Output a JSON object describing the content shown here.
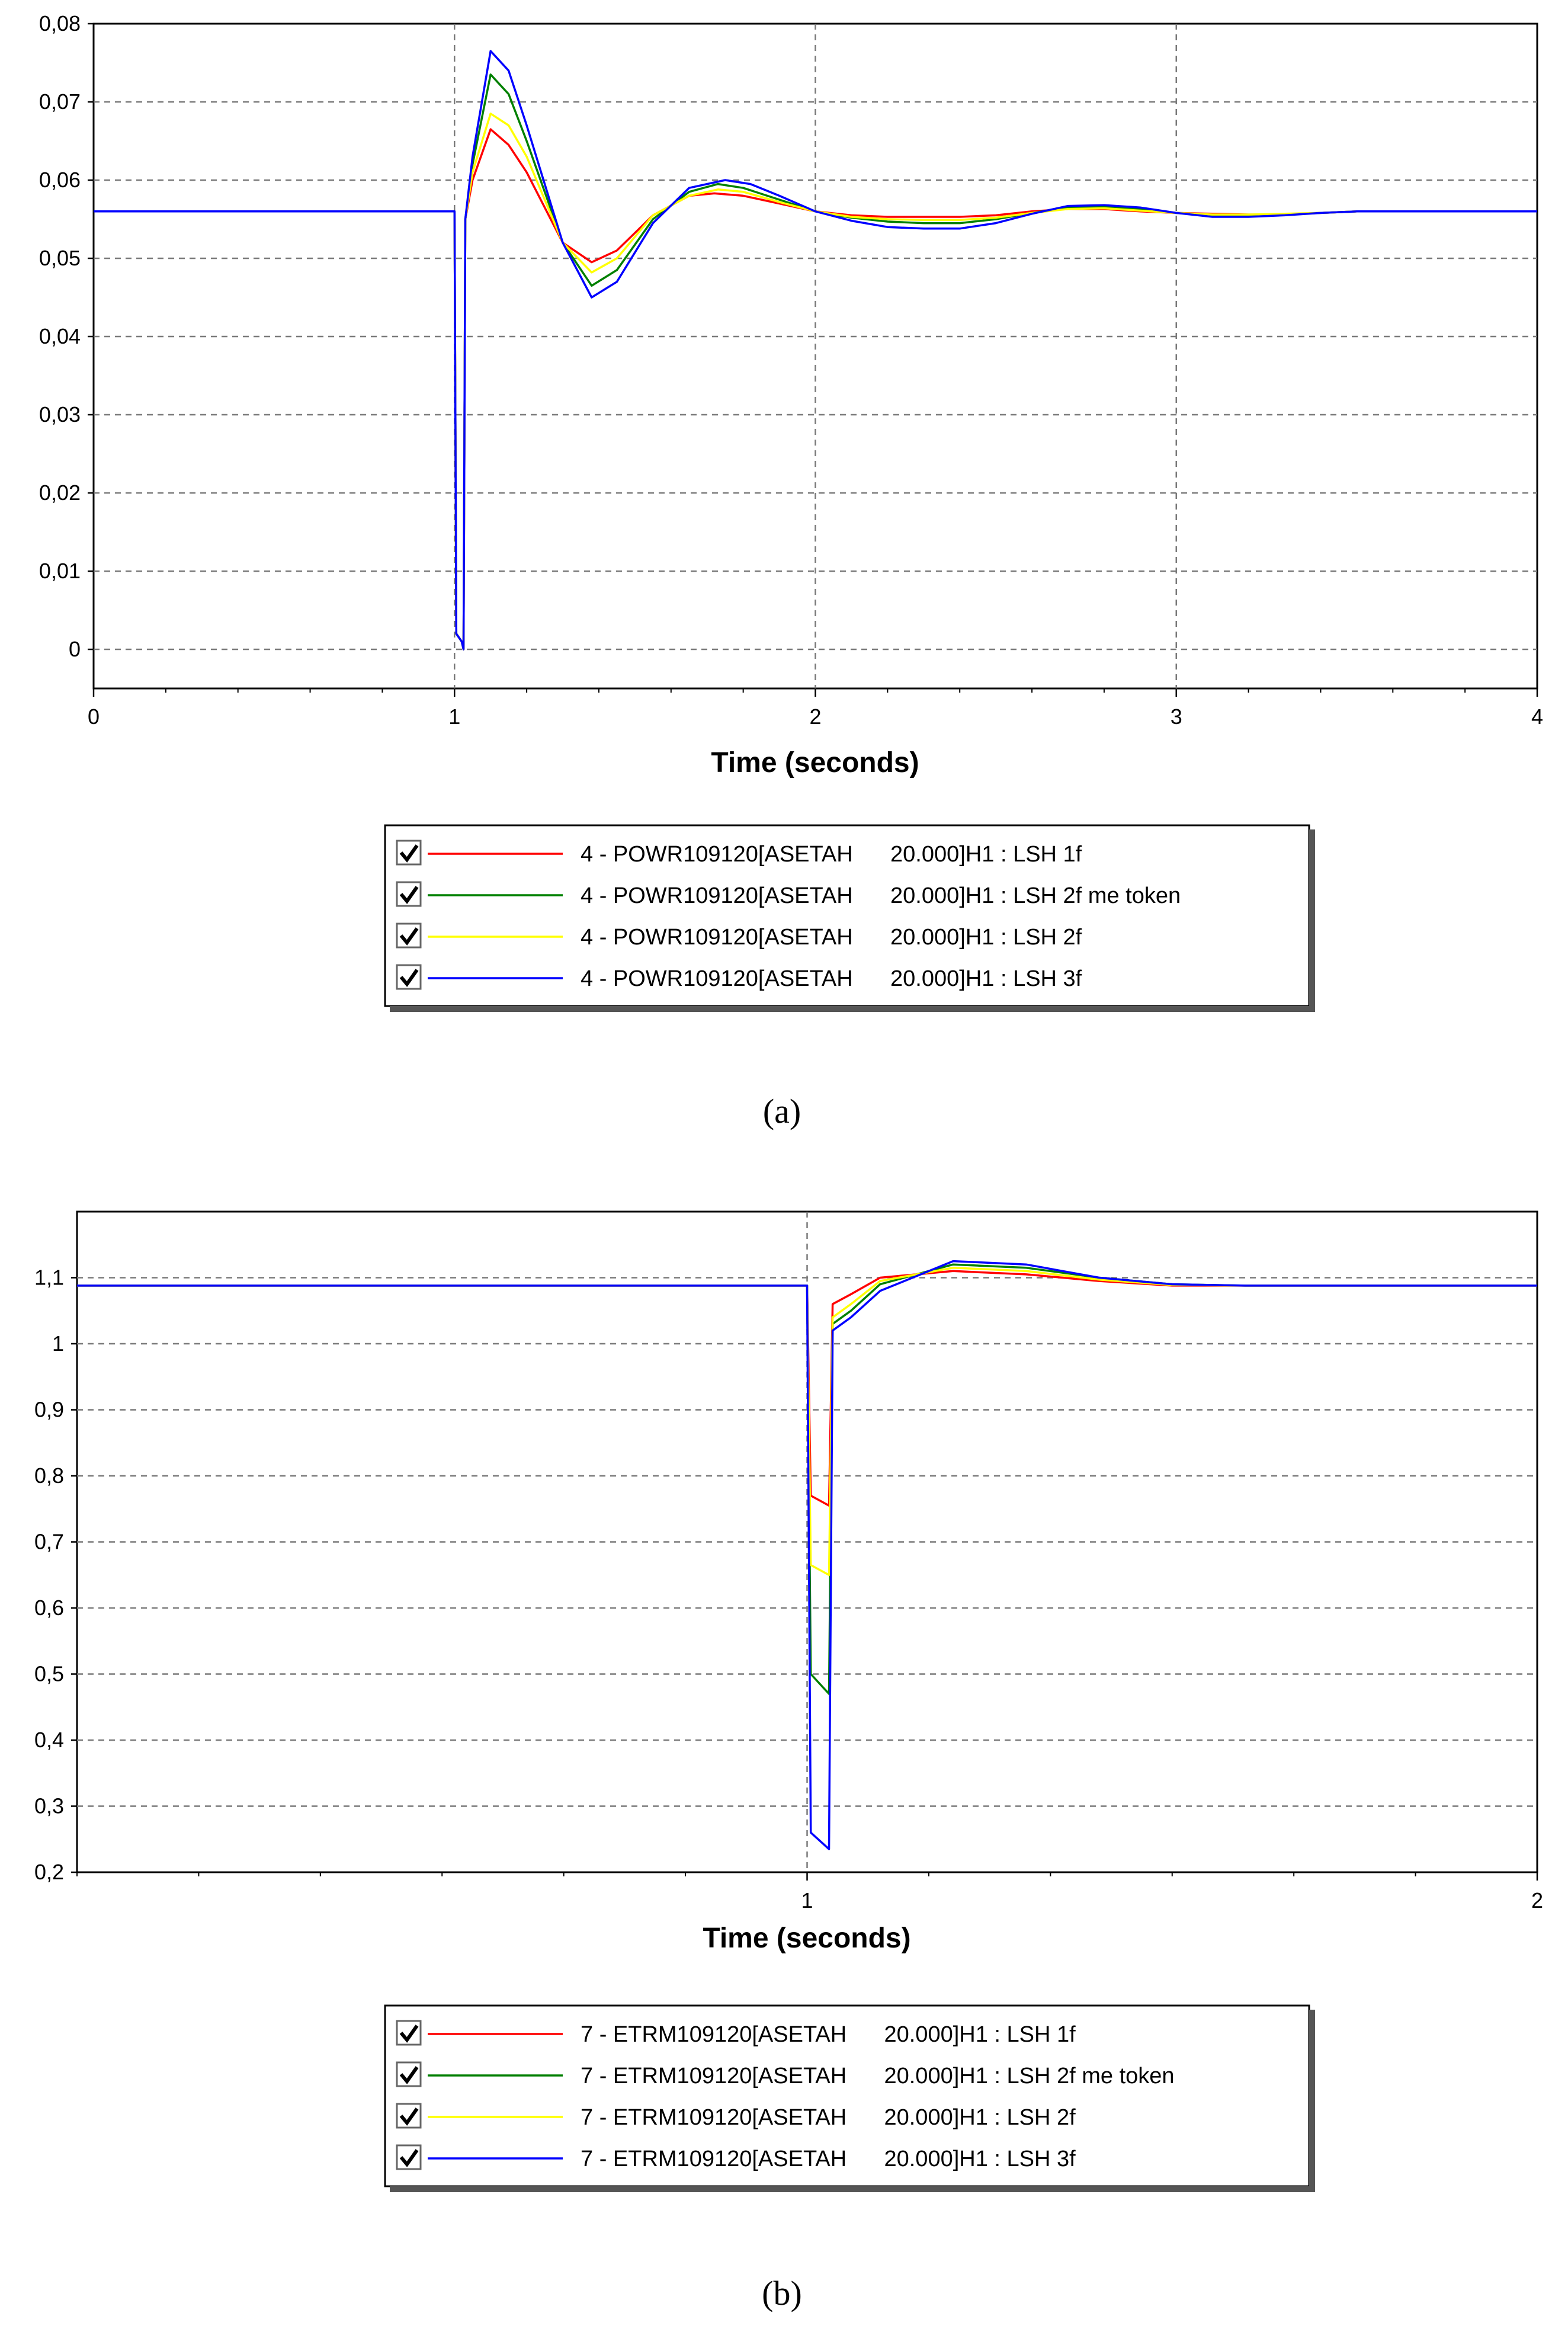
{
  "chart_data": [
    {
      "type": "line",
      "caption": "(a)",
      "xlabel": "Time (seconds)",
      "ylabel": "",
      "xlim": [
        0,
        4
      ],
      "ylim": [
        -0.005,
        0.08
      ],
      "xticks": [
        "0",
        "1",
        "2",
        "3",
        "4"
      ],
      "yticks": [
        "0",
        "0,01",
        "0,02",
        "0,03",
        "0,04",
        "0,05",
        "0,06",
        "0,07",
        "0,08"
      ],
      "ytick_values": [
        0,
        0.01,
        0.02,
        0.03,
        0.04,
        0.05,
        0.06,
        0.07,
        0.08
      ],
      "xtick_values": [
        0,
        1,
        2,
        3,
        4
      ],
      "grid": true,
      "legend_position": "bottom-center",
      "series": [
        {
          "name": "4 - POWR109120[ASETAH      20.000]H1 : LSH 1f",
          "color": "#ff0000",
          "x": [
            0,
            1.0,
            1.005,
            1.02,
            1.025,
            1.03,
            1.05,
            1.1,
            1.15,
            1.2,
            1.3,
            1.38,
            1.45,
            1.55,
            1.65,
            1.72,
            1.8,
            1.9,
            2.0,
            2.1,
            2.2,
            2.3,
            2.4,
            2.5,
            2.6,
            2.7,
            2.8,
            2.9,
            3.0,
            3.1,
            3.2,
            3.3,
            3.4,
            3.5,
            4.0
          ],
          "y": [
            0.056,
            0.056,
            0.002,
            0.001,
            0.0,
            0.055,
            0.06,
            0.0665,
            0.0645,
            0.061,
            0.052,
            0.0495,
            0.051,
            0.0555,
            0.058,
            0.0583,
            0.058,
            0.057,
            0.056,
            0.0555,
            0.0553,
            0.0553,
            0.0553,
            0.0555,
            0.056,
            0.0563,
            0.0563,
            0.056,
            0.0558,
            0.0557,
            0.0556,
            0.0556,
            0.0558,
            0.056,
            0.056
          ]
        },
        {
          "name": "4 - POWR109120[ASETAH      20.000]H1 : LSH 2f me token",
          "color": "#008000",
          "x": [
            0,
            1.0,
            1.005,
            1.02,
            1.025,
            1.03,
            1.05,
            1.1,
            1.15,
            1.2,
            1.3,
            1.38,
            1.45,
            1.55,
            1.65,
            1.73,
            1.8,
            1.9,
            2.0,
            2.1,
            2.2,
            2.3,
            2.4,
            2.5,
            2.6,
            2.7,
            2.8,
            2.9,
            3.0,
            3.1,
            3.2,
            3.3,
            3.4,
            3.5,
            4.0
          ],
          "y": [
            0.056,
            0.056,
            0.002,
            0.001,
            0.0,
            0.055,
            0.062,
            0.0735,
            0.071,
            0.065,
            0.052,
            0.0465,
            0.0485,
            0.055,
            0.0585,
            0.0595,
            0.059,
            0.0575,
            0.056,
            0.0552,
            0.0547,
            0.0545,
            0.0545,
            0.055,
            0.0558,
            0.0565,
            0.0566,
            0.0563,
            0.0558,
            0.0555,
            0.0555,
            0.0556,
            0.0558,
            0.056,
            0.056
          ]
        },
        {
          "name": "4 - POWR109120[ASETAH      20.000]H1 : LSH 2f",
          "color": "#ffff00",
          "x": [
            0,
            1.0,
            1.005,
            1.02,
            1.025,
            1.03,
            1.05,
            1.1,
            1.15,
            1.2,
            1.3,
            1.38,
            1.45,
            1.55,
            1.65,
            1.73,
            1.8,
            1.9,
            2.0,
            2.1,
            2.2,
            2.3,
            2.4,
            2.5,
            2.6,
            2.7,
            2.8,
            2.9,
            3.0,
            3.1,
            3.2,
            3.3,
            3.4,
            3.5,
            4.0
          ],
          "y": [
            0.056,
            0.056,
            0.002,
            0.001,
            0.0,
            0.055,
            0.061,
            0.0685,
            0.067,
            0.063,
            0.052,
            0.0482,
            0.05,
            0.0555,
            0.058,
            0.0588,
            0.0585,
            0.0572,
            0.056,
            0.0553,
            0.055,
            0.0549,
            0.0549,
            0.0552,
            0.0558,
            0.0563,
            0.0564,
            0.0561,
            0.0558,
            0.0556,
            0.0556,
            0.0557,
            0.0558,
            0.056,
            0.056
          ]
        },
        {
          "name": "4 - POWR109120[ASETAH      20.000]H1 : LSH 3f",
          "color": "#0000ff",
          "x": [
            0,
            1.0,
            1.005,
            1.02,
            1.025,
            1.03,
            1.05,
            1.1,
            1.15,
            1.2,
            1.3,
            1.38,
            1.45,
            1.55,
            1.65,
            1.75,
            1.82,
            1.9,
            2.0,
            2.1,
            2.2,
            2.3,
            2.4,
            2.5,
            2.6,
            2.7,
            2.8,
            2.9,
            3.0,
            3.1,
            3.2,
            3.3,
            3.4,
            3.5,
            4.0
          ],
          "y": [
            0.056,
            0.056,
            0.002,
            0.001,
            0.0,
            0.055,
            0.063,
            0.0765,
            0.074,
            0.067,
            0.052,
            0.045,
            0.047,
            0.0545,
            0.059,
            0.06,
            0.0595,
            0.058,
            0.056,
            0.0548,
            0.054,
            0.0538,
            0.0538,
            0.0545,
            0.0557,
            0.0567,
            0.0568,
            0.0565,
            0.0558,
            0.0553,
            0.0553,
            0.0555,
            0.0558,
            0.056,
            0.056
          ]
        }
      ]
    },
    {
      "type": "line",
      "caption": "(b)",
      "xlabel": "Time (seconds)",
      "ylabel": "",
      "xlim": [
        0,
        2
      ],
      "ylim": [
        0.2,
        1.2
      ],
      "xticks": [
        "1",
        "2"
      ],
      "xtick_values": [
        1,
        2
      ],
      "yticks": [
        "0,2",
        "0,3",
        "0,4",
        "0,5",
        "0,6",
        "0,7",
        "0,8",
        "0,9",
        "1",
        "1,1"
      ],
      "ytick_values": [
        0.2,
        0.3,
        0.4,
        0.5,
        0.6,
        0.7,
        0.8,
        0.9,
        1.0,
        1.1
      ],
      "grid": true,
      "legend_position": "bottom-center",
      "series": [
        {
          "name": "7 - ETRM109120[ASETAH      20.000]H1 : LSH 1f",
          "color": "#ff0000",
          "x": [
            0,
            1.0,
            1.005,
            1.03,
            1.035,
            1.06,
            1.1,
            1.2,
            1.3,
            1.4,
            1.5,
            1.6,
            1.8,
            2.0
          ],
          "y": [
            1.088,
            1.088,
            0.77,
            0.755,
            1.06,
            1.075,
            1.1,
            1.11,
            1.105,
            1.095,
            1.088,
            1.088,
            1.088,
            1.088
          ]
        },
        {
          "name": "7 - ETRM109120[ASETAH      20.000]H1 : LSH 2f me token",
          "color": "#008000",
          "x": [
            0,
            1.0,
            1.005,
            1.03,
            1.035,
            1.06,
            1.1,
            1.2,
            1.3,
            1.4,
            1.5,
            1.6,
            1.8,
            2.0
          ],
          "y": [
            1.088,
            1.088,
            0.5,
            0.47,
            1.03,
            1.05,
            1.09,
            1.12,
            1.115,
            1.1,
            1.09,
            1.088,
            1.088,
            1.088
          ]
        },
        {
          "name": "7 - ETRM109120[ASETAH      20.000]H1 : LSH 2f",
          "color": "#ffff00",
          "x": [
            0,
            1.0,
            1.005,
            1.03,
            1.035,
            1.06,
            1.1,
            1.2,
            1.3,
            1.4,
            1.5,
            1.6,
            1.8,
            2.0
          ],
          "y": [
            1.088,
            1.088,
            0.665,
            0.65,
            1.04,
            1.06,
            1.095,
            1.115,
            1.11,
            1.097,
            1.089,
            1.088,
            1.088,
            1.088
          ]
        },
        {
          "name": "7 - ETRM109120[ASETAH      20.000]H1 : LSH 3f",
          "color": "#0000ff",
          "x": [
            0,
            1.0,
            1.005,
            1.03,
            1.035,
            1.06,
            1.1,
            1.2,
            1.3,
            1.4,
            1.5,
            1.6,
            1.8,
            2.0
          ],
          "y": [
            1.088,
            1.088,
            0.26,
            0.235,
            1.02,
            1.04,
            1.08,
            1.125,
            1.12,
            1.1,
            1.09,
            1.088,
            1.088,
            1.088
          ]
        }
      ]
    }
  ]
}
